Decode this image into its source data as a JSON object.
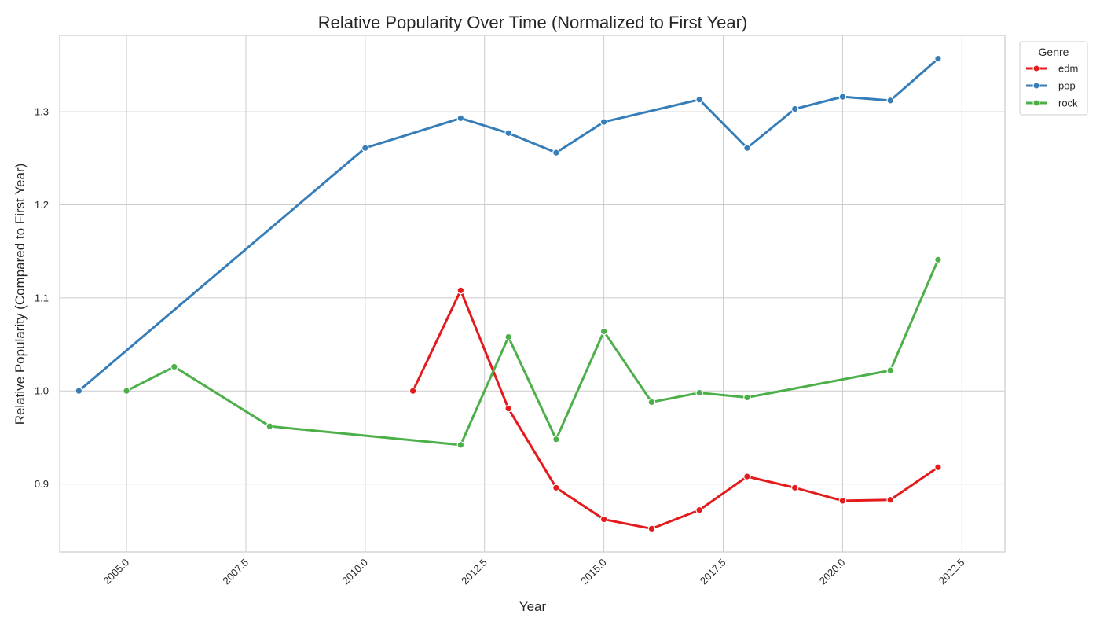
{
  "chart_data": {
    "type": "line",
    "title": "Relative Popularity Over Time (Normalized to First Year)",
    "xlabel": "Year",
    "ylabel": "Relative Popularity (Compared to First Year)",
    "xlim": [
      2003.6,
      2023.4
    ],
    "ylim": [
      0.827,
      1.382
    ],
    "xticks": [
      2005.0,
      2007.5,
      2010.0,
      2012.5,
      2015.0,
      2017.5,
      2020.0,
      2022.5
    ],
    "xtick_labels": [
      "2005.0",
      "2007.5",
      "2010.0",
      "2012.5",
      "2015.0",
      "2017.5",
      "2020.0",
      "2022.5"
    ],
    "yticks": [
      0.9,
      1.0,
      1.1,
      1.2,
      1.3
    ],
    "ytick_labels": [
      "0.9",
      "1.0",
      "1.1",
      "1.2",
      "1.3"
    ],
    "grid": true,
    "legend": {
      "title": "Genre",
      "placement": "outside-top-right"
    },
    "series": [
      {
        "name": "edm",
        "color": "#e41a1c",
        "x": [
          2011,
          2012,
          2013,
          2014,
          2015,
          2016,
          2017,
          2018,
          2019,
          2020,
          2021,
          2022
        ],
        "y": [
          1.0,
          1.108,
          0.981,
          0.896,
          0.862,
          0.852,
          0.872,
          0.908,
          0.896,
          0.882,
          0.883,
          0.918
        ]
      },
      {
        "name": "pop",
        "color": "#377eb8",
        "x": [
          2004,
          2010,
          2012,
          2013,
          2014,
          2015,
          2017,
          2018,
          2019,
          2020,
          2021,
          2022
        ],
        "y": [
          1.0,
          1.261,
          1.293,
          1.277,
          1.256,
          1.289,
          1.313,
          1.261,
          1.303,
          1.316,
          1.312,
          1.357
        ]
      },
      {
        "name": "rock",
        "color": "#4daf4a",
        "x": [
          2005,
          2006,
          2008,
          2012,
          2013,
          2014,
          2015,
          2016,
          2017,
          2018,
          2021,
          2022
        ],
        "y": [
          1.0,
          1.026,
          0.962,
          0.942,
          1.058,
          0.948,
          1.064,
          0.988,
          0.998,
          0.993,
          1.022,
          1.141
        ]
      }
    ]
  }
}
